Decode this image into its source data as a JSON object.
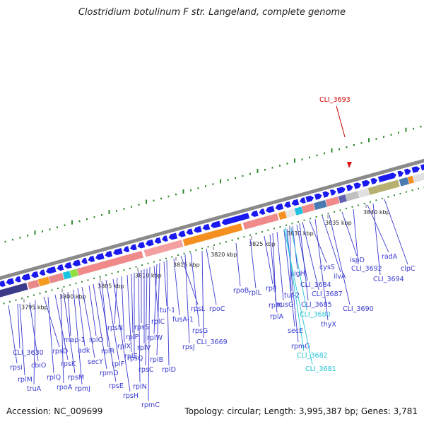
{
  "title": "Clostridium botulinum F str. Langeland, complete genome",
  "footer": {
    "accession": "Accession: NC_009699",
    "summary": "Topology: circular; Length: 3,995,387 bp; Genes: 3,781"
  },
  "highlight": {
    "label": "CLI_3693",
    "color": "#cc0000"
  },
  "colors": {
    "gene_arrow": "#1a1af0",
    "label": "#3a3ad0",
    "cyan": "#22c3d6",
    "tick": "#2e8b2e",
    "backbone": "#888888"
  },
  "kbp_labels": [
    "3795 kbp",
    "3800 kbp",
    "3805 kbp",
    "3810 kbp",
    "3815 kbp",
    "3820 kbp",
    "3825 kbp",
    "3830 kbp",
    "3835 kbp",
    "3840 kbp"
  ],
  "gene_labels": [
    {
      "text": "CLI_3630",
      "style": "blue"
    },
    {
      "text": "rpsI",
      "style": "blue"
    },
    {
      "text": "cbiO",
      "style": "blue"
    },
    {
      "text": "rplM",
      "style": "blue"
    },
    {
      "text": "truA",
      "style": "blue"
    },
    {
      "text": "rpsD",
      "style": "blue"
    },
    {
      "text": "rplQ",
      "style": "blue"
    },
    {
      "text": "rpsK",
      "style": "blue"
    },
    {
      "text": "rpoA",
      "style": "blue"
    },
    {
      "text": "rpsM",
      "style": "blue"
    },
    {
      "text": "map-1",
      "style": "blue"
    },
    {
      "text": "rpmJ",
      "style": "blue"
    },
    {
      "text": "adk",
      "style": "blue"
    },
    {
      "text": "secY",
      "style": "blue"
    },
    {
      "text": "rplO",
      "style": "blue"
    },
    {
      "text": "rpmD",
      "style": "blue"
    },
    {
      "text": "rpsE",
      "style": "blue"
    },
    {
      "text": "rplR",
      "style": "blue"
    },
    {
      "text": "rplF",
      "style": "blue"
    },
    {
      "text": "rpsH",
      "style": "blue"
    },
    {
      "text": "rpsN",
      "style": "blue"
    },
    {
      "text": "rplX",
      "style": "blue"
    },
    {
      "text": "rplE",
      "style": "blue"
    },
    {
      "text": "rplP",
      "style": "blue"
    },
    {
      "text": "rpsQ",
      "style": "blue"
    },
    {
      "text": "rplN",
      "style": "blue"
    },
    {
      "text": "rpsS",
      "style": "blue"
    },
    {
      "text": "rplV",
      "style": "blue"
    },
    {
      "text": "rpsC",
      "style": "blue"
    },
    {
      "text": "rpmC",
      "style": "blue"
    },
    {
      "text": "rplC",
      "style": "blue"
    },
    {
      "text": "rplW",
      "style": "blue"
    },
    {
      "text": "rplB",
      "style": "blue"
    },
    {
      "text": "tuf-1",
      "style": "blue"
    },
    {
      "text": "rplD",
      "style": "blue"
    },
    {
      "text": "fusA-1",
      "style": "blue"
    },
    {
      "text": "rpsL",
      "style": "blue"
    },
    {
      "text": "rpsJ",
      "style": "blue"
    },
    {
      "text": "rpsG",
      "style": "blue"
    },
    {
      "text": "CLI_3669",
      "style": "blue"
    },
    {
      "text": "rpoC",
      "style": "blue"
    },
    {
      "text": "rpoB",
      "style": "blue"
    },
    {
      "text": "rplL",
      "style": "blue"
    },
    {
      "text": "rplJ",
      "style": "blue"
    },
    {
      "text": "rplA",
      "style": "blue"
    },
    {
      "text": "rplK",
      "style": "blue"
    },
    {
      "text": "nusG",
      "style": "blue"
    },
    {
      "text": "secE",
      "style": "blue"
    },
    {
      "text": "rpmG",
      "style": "blue"
    },
    {
      "text": "tuf-2",
      "style": "blue"
    },
    {
      "text": "sigH",
      "style": "blue"
    },
    {
      "text": "CLI_3682",
      "style": "cyan"
    },
    {
      "text": "CLI_3681",
      "style": "cyan"
    },
    {
      "text": "CLI_3680",
      "style": "cyan"
    },
    {
      "text": "CLI_3684",
      "style": "blue"
    },
    {
      "text": "CLI_3685",
      "style": "blue"
    },
    {
      "text": "CLI_3687",
      "style": "blue"
    },
    {
      "text": "cysS",
      "style": "blue"
    },
    {
      "text": "thyX",
      "style": "blue"
    },
    {
      "text": "ilvA",
      "style": "blue"
    },
    {
      "text": "CLI_3690",
      "style": "blue"
    },
    {
      "text": "ispD",
      "style": "blue"
    },
    {
      "text": "CLI_3692",
      "style": "blue"
    },
    {
      "text": "radA",
      "style": "blue"
    },
    {
      "text": "CLI_3694",
      "style": "blue"
    },
    {
      "text": "clpC",
      "style": "blue"
    }
  ]
}
